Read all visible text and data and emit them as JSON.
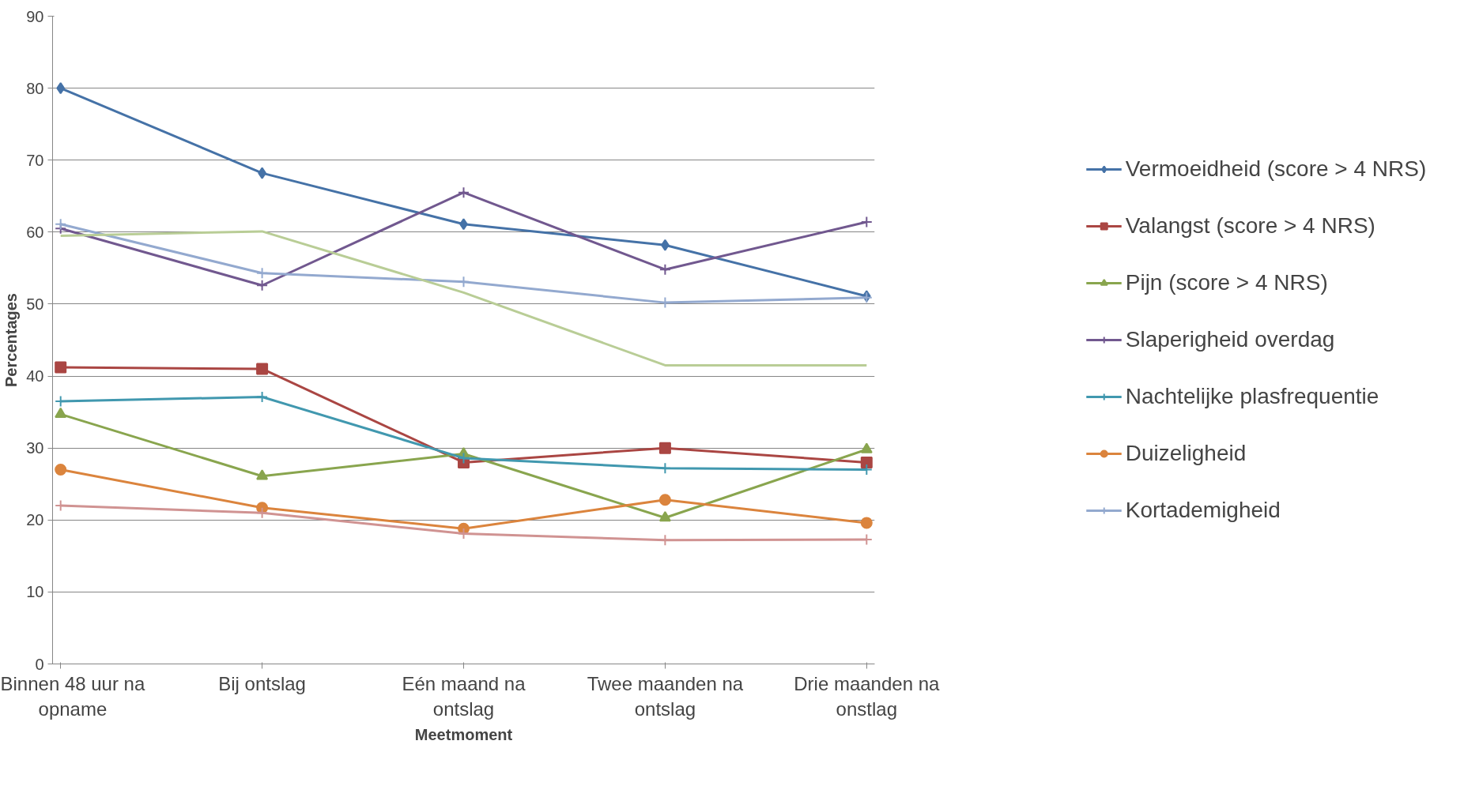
{
  "chart_data": {
    "type": "line",
    "xlabel": "Meetmoment",
    "ylabel": "Percentages",
    "categories": [
      "Binnen 48 uur na opname",
      "Bij ontslag",
      "Eén maand na ontslag",
      "Twee maanden na ontslag",
      "Drie maanden na onstlag"
    ],
    "ylim": [
      0,
      90
    ],
    "yticks": [
      0,
      10,
      20,
      30,
      40,
      50,
      60,
      70,
      80,
      90
    ],
    "grid": "y",
    "legend": "right",
    "series": [
      {
        "name": "Vermoeidheid (score > 4 NRS)",
        "color": "#4572a7",
        "marker": "diamond",
        "values": [
          80,
          68.2,
          61.1,
          58.2,
          51.1
        ]
      },
      {
        "name": "Valangst (score > 4 NRS)",
        "color": "#aa4643",
        "marker": "square",
        "values": [
          41.2,
          41.0,
          28.0,
          30.0,
          28.0
        ]
      },
      {
        "name": "Pijn (score > 4 NRS)",
        "color": "#89a54e",
        "marker": "triangle",
        "values": [
          34.7,
          26.1,
          29.2,
          20.3,
          29.8
        ]
      },
      {
        "name": "Slaperigheid overdag",
        "color": "#71588f",
        "marker": "cross",
        "values": [
          60.5,
          52.6,
          65.5,
          54.8,
          61.4
        ]
      },
      {
        "name": "Nachtelijke plasfrequentie",
        "color": "#4198af",
        "marker": "cross",
        "values": [
          36.5,
          37.1,
          28.6,
          27.2,
          27.0
        ]
      },
      {
        "name": "Duizeligheid",
        "color": "#db843d",
        "marker": "circle",
        "values": [
          27.0,
          21.7,
          18.8,
          22.8,
          19.6
        ]
      },
      {
        "name": "Kortademigheid",
        "color": "#93a9cf",
        "marker": "cross",
        "values": [
          61.1,
          54.3,
          53.1,
          50.2,
          50.9
        ]
      },
      {
        "color": "#b9cd96",
        "marker": "none",
        "values": [
          59.5,
          60.1,
          51.6,
          41.5,
          41.5
        ]
      },
      {
        "color": "#d09392",
        "marker": "cross",
        "values": [
          22.0,
          21.0,
          18.1,
          17.2,
          17.3
        ]
      }
    ]
  }
}
